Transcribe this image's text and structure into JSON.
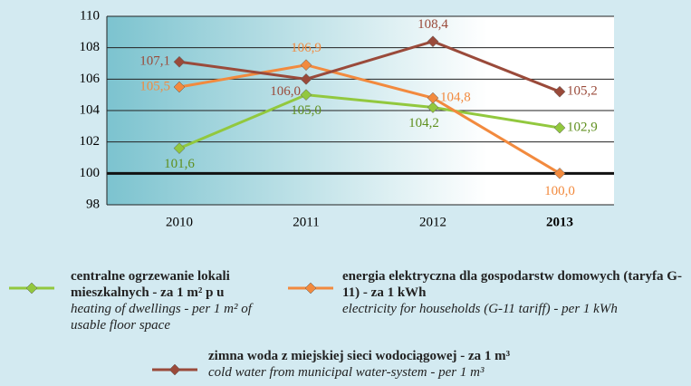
{
  "chart_data": {
    "type": "line",
    "categories": [
      "2010",
      "2011",
      "2012",
      "2013"
    ],
    "ylim": [
      98,
      110
    ],
    "yticks": [
      98,
      100,
      102,
      104,
      106,
      108,
      110
    ],
    "grid": true,
    "reference_line": 100,
    "series": [
      {
        "name": "centralne ogrzewanie lokali mieszkalnych - za 1 m² p u",
        "name_en": "heating of dwellings - per 1 m² of usable floor space",
        "color": "#92c83e",
        "values": [
          101.6,
          105.0,
          104.2,
          102.9
        ],
        "value_labels": [
          "101,6",
          "105,0",
          "104,2",
          "102,9"
        ]
      },
      {
        "name": "energia elektryczna dla gospodarstw domowych (taryfa G-11) - za 1 kWh",
        "name_en": "electricity for households (G-11 tariff) - per 1 kWh",
        "color": "#f28a3e",
        "values": [
          105.5,
          106.9,
          104.8,
          100.0
        ],
        "value_labels": [
          "105,5",
          "106,9",
          "104,8",
          "100,0"
        ]
      },
      {
        "name": "zimna woda z miejskiej sieci wodociągowej - za 1 m³",
        "name_en": "cold water from municipal water-system - per 1 m³",
        "color": "#9a4a3a",
        "values": [
          107.1,
          106.0,
          108.4,
          105.2
        ],
        "value_labels": [
          "107,1",
          "106,0",
          "108,4",
          "105,2"
        ]
      }
    ]
  }
}
